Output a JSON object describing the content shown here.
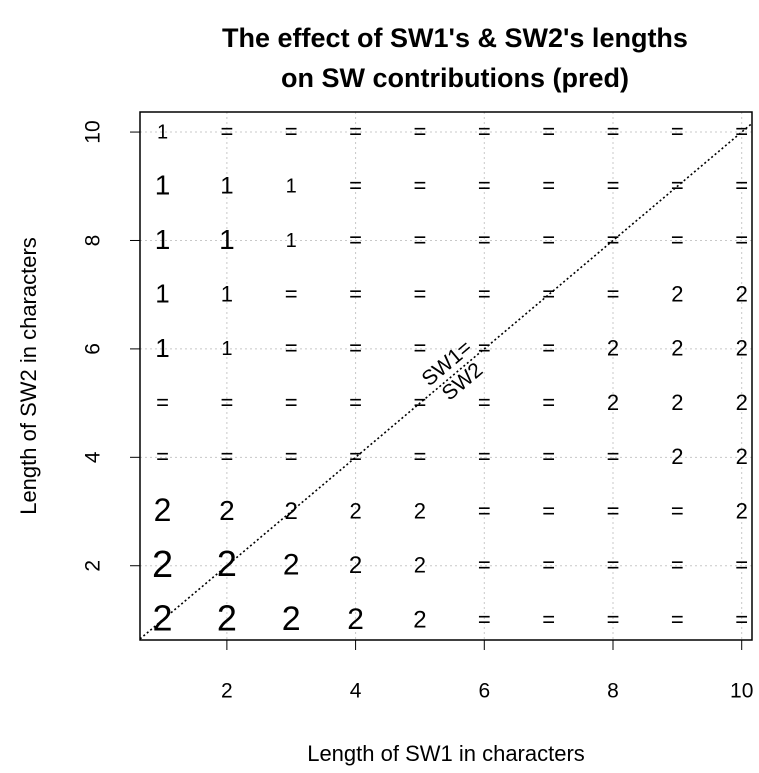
{
  "chart_data": {
    "type": "text-scatter",
    "title": [
      "The effect of SW1's & SW2's lengths",
      "on SW contributions (pred)"
    ],
    "x_label": "Length of SW1 in characters",
    "y_label": "Length of SW2 in characters",
    "annotation": [
      "SW1=",
      "SW2"
    ],
    "xlim": [
      0.65,
      10.16
    ],
    "ylim": [
      0.63,
      10.37
    ],
    "xticks": [
      2,
      4,
      6,
      8,
      10
    ],
    "yticks": [
      2,
      4,
      6,
      8,
      10
    ],
    "grid": true,
    "x": [
      1,
      2,
      3,
      4,
      5,
      6,
      7,
      8,
      9,
      10,
      1,
      2,
      3,
      4,
      5,
      6,
      7,
      8,
      9,
      10,
      1,
      2,
      3,
      4,
      5,
      6,
      7,
      8,
      9,
      10,
      1,
      2,
      3,
      4,
      5,
      6,
      7,
      8,
      9,
      10,
      1,
      2,
      3,
      4,
      5,
      6,
      7,
      8,
      9,
      10,
      1,
      2,
      3,
      4,
      5,
      6,
      7,
      8,
      9,
      10,
      1,
      2,
      3,
      4,
      5,
      6,
      7,
      8,
      9,
      10,
      1,
      2,
      3,
      4,
      5,
      6,
      7,
      8,
      9,
      10,
      1,
      2,
      3,
      4,
      5,
      6,
      7,
      8,
      9,
      10,
      1,
      2,
      3,
      4,
      5,
      6,
      7,
      8,
      9,
      10
    ],
    "y": [
      10,
      10,
      10,
      10,
      10,
      10,
      10,
      10,
      10,
      10,
      9,
      9,
      9,
      9,
      9,
      9,
      9,
      9,
      9,
      9,
      8,
      8,
      8,
      8,
      8,
      8,
      8,
      8,
      8,
      8,
      7,
      7,
      7,
      7,
      7,
      7,
      7,
      7,
      7,
      7,
      6,
      6,
      6,
      6,
      6,
      6,
      6,
      6,
      6,
      6,
      5,
      5,
      5,
      5,
      5,
      5,
      5,
      5,
      5,
      5,
      4,
      4,
      4,
      4,
      4,
      4,
      4,
      4,
      4,
      4,
      3,
      3,
      3,
      3,
      3,
      3,
      3,
      3,
      3,
      3,
      2,
      2,
      2,
      2,
      2,
      2,
      2,
      2,
      2,
      2,
      1,
      1,
      1,
      1,
      1,
      1,
      1,
      1,
      1,
      1
    ],
    "labels": [
      "1",
      "=",
      "=",
      "=",
      "=",
      "=",
      "=",
      "=",
      "=",
      "=",
      "1",
      "1",
      "1",
      "=",
      "=",
      "=",
      "=",
      "=",
      "=",
      "=",
      "1",
      "1",
      "1",
      "=",
      "=",
      "=",
      "=",
      "=",
      "=",
      "=",
      "1",
      "1",
      "=",
      "=",
      "=",
      "=",
      "=",
      "=",
      "2",
      "2",
      "1",
      "1",
      "=",
      "=",
      "=",
      "=",
      "=",
      "2",
      "2",
      "2",
      "=",
      "=",
      "=",
      "=",
      "=",
      "=",
      "=",
      "2",
      "2",
      "2",
      "=",
      "=",
      "=",
      "=",
      "=",
      "=",
      "=",
      "=",
      "2",
      "2",
      "2",
      "2",
      "2",
      "2",
      "2",
      "=",
      "=",
      "=",
      "=",
      "2",
      "2",
      "2",
      "2",
      "2",
      "2",
      "=",
      "=",
      "=",
      "=",
      "=",
      "2",
      "2",
      "2",
      "2",
      "2",
      "=",
      "=",
      "=",
      "=",
      "="
    ],
    "sizes": [
      20,
      22,
      22,
      22,
      22,
      22,
      22,
      22,
      22,
      22,
      28,
      24,
      20,
      22,
      22,
      22,
      22,
      22,
      22,
      22,
      28,
      28,
      20,
      22,
      22,
      22,
      22,
      22,
      22,
      22,
      26,
      22,
      22,
      22,
      22,
      22,
      22,
      22,
      22,
      22,
      26,
      20,
      22,
      22,
      22,
      22,
      22,
      22,
      22,
      22,
      22,
      22,
      22,
      22,
      22,
      22,
      22,
      22,
      22,
      22,
      22,
      22,
      22,
      22,
      22,
      22,
      22,
      22,
      22,
      22,
      32,
      28,
      24,
      22,
      22,
      22,
      22,
      22,
      22,
      22,
      38,
      36,
      30,
      24,
      22,
      22,
      22,
      22,
      22,
      22,
      36,
      36,
      34,
      30,
      24,
      22,
      22,
      22,
      22,
      22
    ]
  }
}
